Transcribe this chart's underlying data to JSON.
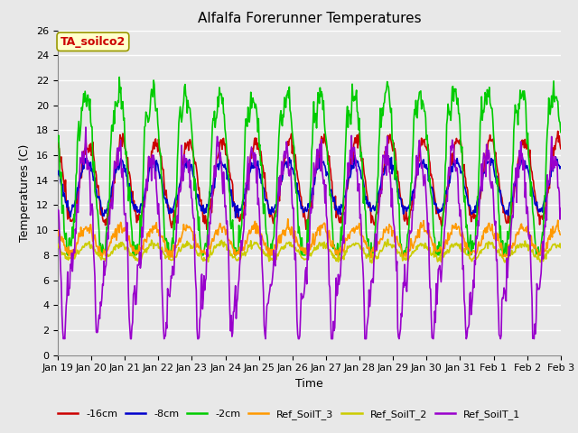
{
  "title": "Alfalfa Forerunner Temperatures",
  "xlabel": "Time",
  "ylabel": "Temperatures (C)",
  "annotation": "TA_soilco2",
  "ylim": [
    0,
    26
  ],
  "yticks": [
    0,
    2,
    4,
    6,
    8,
    10,
    12,
    14,
    16,
    18,
    20,
    22,
    24,
    26
  ],
  "series_colors": {
    "-16cm": "#cc0000",
    "-8cm": "#0000cc",
    "-2cm": "#00cc00",
    "Ref_SoilT_3": "#ff9900",
    "Ref_SoilT_2": "#cccc00",
    "Ref_SoilT_1": "#9900cc"
  },
  "x_labels": [
    "Jan 19",
    "Jan 20",
    "Jan 21",
    "Jan 22",
    "Jan 23",
    "Jan 24",
    "Jan 25",
    "Jan 26",
    "Jan 27",
    "Jan 28",
    "Jan 29",
    "Jan 30",
    "Jan 31",
    "Feb 1",
    "Feb 2",
    "Feb 3"
  ],
  "fig_bg_color": "#e8e8e8",
  "plot_bg_color": "#e8e8e8",
  "grid_color": "#ffffff",
  "title_fontsize": 11,
  "axis_label_fontsize": 9,
  "tick_fontsize": 8,
  "legend_fontsize": 8,
  "linewidth": 1.2,
  "n_days": 15,
  "n_pts_per_day": 48
}
